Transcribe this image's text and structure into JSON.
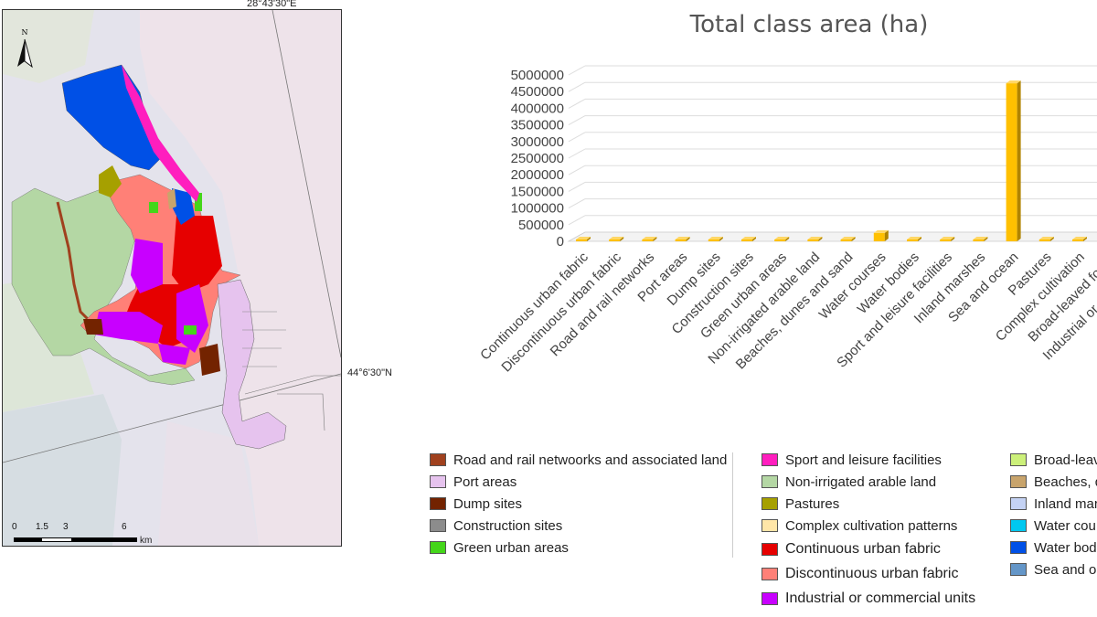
{
  "map": {
    "coord_top": "28°43'30\"E",
    "coord_right": "44°6'30\"N",
    "north_label": "N",
    "scale": {
      "ticks": [
        "0",
        "1.5",
        "3",
        "6"
      ],
      "unit": "km"
    }
  },
  "chart_data": {
    "type": "bar",
    "title": "Total class area (ha)",
    "categories": [
      "Continuous urban fabric",
      "Discontinuous urban fabric",
      "Road and rail networks",
      "Port areas",
      "Dump sites",
      "Construction sites",
      "Green urban areas",
      "Non-irrigated arable land",
      "Beaches, dunes and sand",
      "Water courses",
      "Water bodies",
      "Sport and leisure facilities",
      "Inland marshes",
      "Sea and ocean",
      "Pastures",
      "Complex cultivation",
      "Broad-leaved forest",
      "Industrial or commercial"
    ],
    "values": [
      20000,
      25000,
      15000,
      10000,
      8000,
      5000,
      12000,
      40000,
      15000,
      250000,
      5000,
      8000,
      10000,
      4750000,
      12000,
      8000,
      5000,
      30000
    ],
    "y_ticks": [
      "5000000",
      "4500000",
      "4000000",
      "3500000",
      "3000000",
      "2500000",
      "2000000",
      "1500000",
      "1000000",
      "500000",
      "0"
    ],
    "ylim": [
      0,
      5000000
    ],
    "bar_color": "#ffc000"
  },
  "legend": {
    "col1": [
      {
        "label": "Road and rail netwoorks and associated land",
        "color": "#a0411e"
      },
      {
        "label": "Port areas",
        "color": "#e6c3ee"
      },
      {
        "label": "Dump sites",
        "color": "#732300"
      },
      {
        "label": "Construction sites",
        "color": "#8c8c8c"
      },
      {
        "label": "Green urban areas",
        "color": "#44d61a"
      }
    ],
    "col2": [
      {
        "label": "Sport and leisure facilities",
        "color": "#ff1ebe"
      },
      {
        "label": "Non-irrigated arable land",
        "color": "#b4d7a4"
      },
      {
        "label": "Pastures",
        "color": "#a6a000"
      },
      {
        "label": "Complex cultivation patterns",
        "color": "#ffe6a8"
      },
      {
        "label": "Continuous urban fabric",
        "color": "#e60000"
      },
      {
        "label": "Discontinuous urban fabric",
        "color": "#ff8077"
      },
      {
        "label": "Industrial or commercial units",
        "color": "#c800ff"
      }
    ],
    "col3": [
      {
        "label": "Broad-leav",
        "color": "#ccf07a"
      },
      {
        "label": "Beaches, d",
        "color": "#c8a46c"
      },
      {
        "label": "Inland mar",
        "color": "#c4d2f4"
      },
      {
        "label": "Water cou",
        "color": "#00c8f0"
      },
      {
        "label": "Water bod",
        "color": "#0050e6"
      },
      {
        "label": "Sea and oc",
        "color": "#6496c8"
      }
    ]
  }
}
